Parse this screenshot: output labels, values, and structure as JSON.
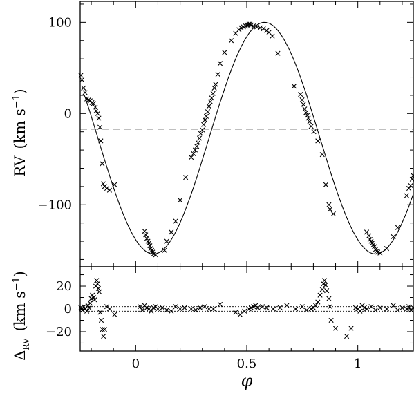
{
  "chart_data": [
    {
      "type": "scatter",
      "panel": "top",
      "ylabel": "RV",
      "ylabel_unit": "(km s",
      "ylabel_exp": "−1",
      "ylabel_close": ")",
      "xlim": [
        -0.25,
        1.25
      ],
      "ylim": [
        -168,
        123
      ],
      "yticks": [
        100,
        0,
        -100
      ],
      "ytick_labels": [
        "100",
        "0",
        "−100"
      ],
      "xticks": [
        0,
        0.5,
        1
      ],
      "systemic_velocity": -17,
      "model": {
        "K": 127,
        "gamma": -27,
        "phase_max": 0.58,
        "clip_above": 20,
        "step_at": -0.2
      },
      "series": [
        {
          "marker": "x",
          "x": [
            -0.247,
            -0.242,
            -0.235,
            -0.228,
            -0.22,
            -0.212,
            -0.205,
            -0.197,
            -0.19,
            -0.182,
            -0.178,
            -0.171,
            -0.166,
            -0.161,
            -0.157,
            -0.151,
            -0.146,
            -0.14,
            -0.13,
            -0.118,
            -0.095,
            0.04,
            0.045,
            0.05,
            0.055,
            0.06,
            0.064,
            0.068,
            0.072,
            0.076,
            0.08,
            0.09,
            0.13,
            0.14,
            0.16,
            0.18,
            0.2,
            0.225,
            0.25,
            0.26,
            0.268,
            0.275,
            0.281,
            0.287,
            0.293,
            0.3,
            0.306,
            0.312,
            0.318,
            0.324,
            0.33,
            0.336,
            0.342,
            0.348,
            0.354,
            0.36,
            0.37,
            0.38,
            0.4,
            0.43,
            0.45,
            0.465,
            0.475,
            0.485,
            0.495,
            0.5,
            0.505,
            0.51,
            0.515,
            0.52,
            0.53,
            0.545,
            0.56,
            0.575,
            0.59,
            0.6,
            0.615,
            0.64,
            0.713,
            0.742,
            0.749,
            0.755,
            0.761,
            0.767,
            0.773,
            0.777,
            0.783,
            0.79,
            0.802,
            0.82,
            0.84,
            0.856,
            0.87,
            0.875,
            0.89,
            1.04,
            1.05,
            1.055,
            1.06,
            1.065,
            1.07,
            1.075,
            1.08,
            1.085,
            1.09,
            1.1,
            1.13,
            1.16,
            1.18,
            1.22,
            1.23,
            1.238,
            1.245,
            1.25
          ],
          "y": [
            42,
            37,
            28,
            23,
            16,
            15,
            14,
            12,
            11,
            7,
            3,
            0,
            -5,
            -15,
            -30,
            -55,
            -77,
            -80,
            -82,
            -84,
            -78,
            -129,
            -133,
            -137,
            -140,
            -142,
            -145,
            -148,
            -150,
            -152,
            -154,
            -155,
            -150,
            -140,
            -130,
            -118,
            -95,
            -70,
            -48,
            -44,
            -40,
            -36,
            -32,
            -27,
            -22,
            -18,
            -12,
            -7,
            -3,
            2,
            8,
            13,
            17,
            22,
            28,
            32,
            43,
            55,
            67,
            80,
            88,
            92,
            94,
            95,
            96,
            97,
            97,
            98,
            98,
            97,
            96,
            95,
            94,
            93,
            91,
            89,
            85,
            66,
            30,
            21,
            15,
            10,
            5,
            1,
            -2,
            -5,
            -9,
            -14,
            -20,
            -30,
            -45,
            -78,
            -100,
            -105,
            -110,
            -130,
            -134,
            -138,
            -140,
            -142,
            -144,
            -146,
            -149,
            -151,
            -152,
            -153,
            -148,
            -135,
            -125,
            -90,
            -82,
            -79,
            -72,
            -68
          ]
        }
      ]
    },
    {
      "type": "scatter",
      "panel": "bottom",
      "xlabel": "φ",
      "ylabel": "Δ",
      "ylabel_sub": "RV",
      "ylabel_unit": "(km s",
      "ylabel_exp": "−1",
      "ylabel_close": ")",
      "xlim": [
        -0.25,
        1.25
      ],
      "ylim": [
        -37,
        37
      ],
      "yticks": [
        20,
        0,
        -20
      ],
      "ytick_labels": [
        "20",
        "0",
        "−20"
      ],
      "xticks": [
        0,
        0.5,
        1
      ],
      "xtick_labels": [
        "0",
        "0.5",
        "1"
      ],
      "ref_lines": [
        2,
        -2
      ],
      "series": [
        {
          "marker": "x",
          "x": [
            -0.247,
            -0.243,
            -0.238,
            -0.233,
            -0.228,
            -0.22,
            -0.215,
            -0.21,
            -0.205,
            -0.2,
            -0.195,
            -0.19,
            -0.185,
            -0.18,
            -0.176,
            -0.172,
            -0.168,
            -0.164,
            -0.16,
            -0.155,
            -0.15,
            -0.145,
            -0.14,
            -0.13,
            -0.118,
            -0.095,
            0.02,
            0.03,
            0.04,
            0.05,
            0.06,
            0.07,
            0.08,
            0.09,
            0.1,
            0.12,
            0.14,
            0.16,
            0.18,
            0.2,
            0.22,
            0.25,
            0.27,
            0.29,
            0.31,
            0.33,
            0.35,
            0.38,
            0.45,
            0.47,
            0.49,
            0.51,
            0.52,
            0.53,
            0.54,
            0.55,
            0.57,
            0.59,
            0.62,
            0.65,
            0.68,
            0.72,
            0.75,
            0.77,
            0.79,
            0.8,
            0.81,
            0.82,
            0.83,
            0.84,
            0.845,
            0.85,
            0.855,
            0.86,
            0.87,
            0.875,
            0.88,
            0.9,
            0.95,
            0.97,
            0.99,
            1.0,
            1.01,
            1.02,
            1.03,
            1.04,
            1.06,
            1.08,
            1.1,
            1.13,
            1.16,
            1.18,
            1.2,
            1.22,
            1.23,
            1.24,
            1.25
          ],
          "y": [
            1,
            0,
            -1,
            2,
            0,
            -2,
            3,
            1,
            5,
            9,
            12,
            10,
            8,
            20,
            25,
            22,
            18,
            15,
            -3,
            -10,
            -18,
            -24,
            -18,
            2,
            0,
            -5,
            2,
            -1,
            3,
            1,
            0,
            -2,
            1,
            2,
            0,
            1,
            -1,
            -2,
            2,
            0,
            1,
            0,
            -1,
            1,
            2,
            0,
            0,
            4,
            -3,
            -5,
            -2,
            0,
            1,
            2,
            3,
            1,
            2,
            1,
            0,
            1,
            3,
            0,
            2,
            -1,
            0,
            1,
            3,
            6,
            12,
            17,
            22,
            25,
            21,
            16,
            9,
            2,
            -10,
            -17,
            -24,
            -17,
            1,
            0,
            -2,
            3,
            1,
            0,
            2,
            -1,
            1,
            0,
            3,
            -1,
            1,
            0,
            2,
            -1,
            1
          ]
        }
      ]
    }
  ]
}
